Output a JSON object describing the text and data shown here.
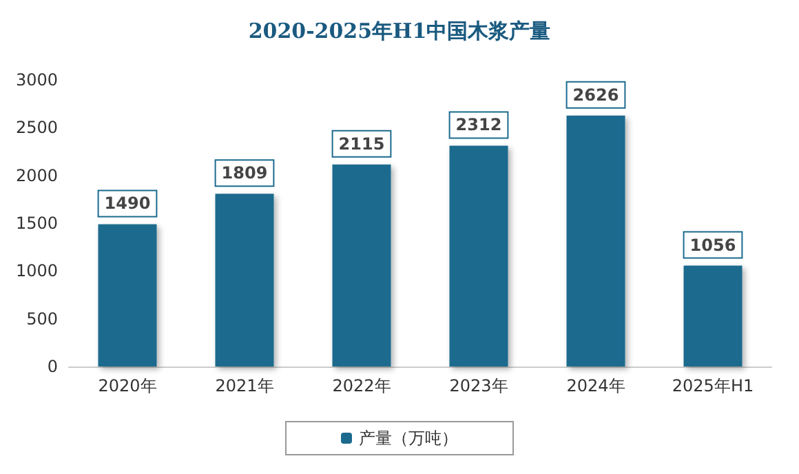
{
  "chart_data": {
    "type": "bar",
    "title": "2020-2025年H1中国木浆产量",
    "categories": [
      "2020年",
      "2021年",
      "2022年",
      "2023年",
      "2024年",
      "2025年H1"
    ],
    "series": [
      {
        "name": "产量（万吨）",
        "color": "#1b6a8e",
        "values": [
          1490,
          1809,
          2115,
          2312,
          2626,
          1056
        ]
      }
    ],
    "ylim": [
      0,
      3000
    ],
    "yticks": [
      0,
      500,
      1000,
      1500,
      2000,
      2500,
      3000
    ],
    "data_labels": true,
    "legend": "bottom",
    "grid": false
  }
}
